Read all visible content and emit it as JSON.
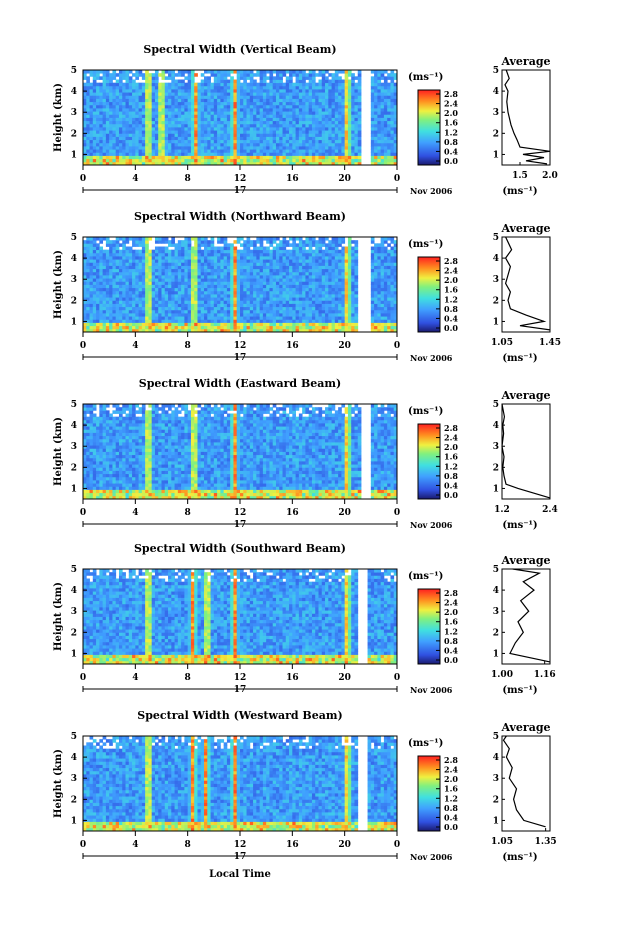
{
  "figure": {
    "xlabel": "Local Time",
    "date_label": "Nov 2006",
    "day_label": "17",
    "unit_label": "(ms⁻¹)",
    "avg_title": "Average",
    "ylabel": "Height (km)"
  },
  "chart_data": [
    {
      "type": "heatmap",
      "title": "Spectral Width (Vertical Beam)",
      "xticks": [
        "0",
        "4",
        "8",
        "12",
        "16",
        "20",
        "0"
      ],
      "xlim": [
        0,
        24
      ],
      "yticks": [
        "1",
        "2",
        "3",
        "4",
        "5"
      ],
      "ylim": [
        0.5,
        5
      ],
      "colorbar_ticks": [
        "2.8",
        "2.4",
        "2.0",
        "1.6",
        "1.2",
        "0.8",
        "0.4",
        "0.0"
      ],
      "colorbar_range": [
        0,
        2.8
      ],
      "hot_columns": [
        5,
        6,
        8.6,
        11.6,
        20.2
      ],
      "gaps": [
        [
          21.2,
          22
        ]
      ],
      "average": {
        "xticks": [
          "1.5",
          "2.0"
        ],
        "xlim": [
          1.2,
          2.0
        ],
        "xlabel": "(ms⁻¹)",
        "points": [
          [
            1.95,
            0.55
          ],
          [
            1.6,
            0.7
          ],
          [
            1.9,
            0.85
          ],
          [
            1.55,
            1.0
          ],
          [
            2.0,
            1.15
          ],
          [
            1.5,
            1.35
          ],
          [
            1.45,
            1.7
          ],
          [
            1.4,
            2.0
          ],
          [
            1.35,
            2.4
          ],
          [
            1.3,
            3.0
          ],
          [
            1.28,
            3.5
          ],
          [
            1.3,
            4.0
          ],
          [
            1.25,
            4.3
          ],
          [
            1.32,
            4.6
          ],
          [
            1.27,
            5.0
          ]
        ]
      }
    },
    {
      "type": "heatmap",
      "title": "Spectral Width (Northward Beam)",
      "xticks": [
        "0",
        "4",
        "8",
        "12",
        "16",
        "20",
        "0"
      ],
      "xlim": [
        0,
        24
      ],
      "yticks": [
        "1",
        "2",
        "3",
        "4",
        "5"
      ],
      "ylim": [
        0.5,
        5
      ],
      "colorbar_ticks": [
        "2.8",
        "2.4",
        "2.0",
        "1.6",
        "1.2",
        "0.8",
        "0.4",
        "0.0"
      ],
      "colorbar_range": [
        0,
        2.8
      ],
      "hot_columns": [
        5,
        8.5,
        11.6,
        20.2
      ],
      "gaps": [
        [
          21.1,
          22
        ]
      ],
      "average": {
        "xticks": [
          "1.05",
          "1.45"
        ],
        "xlim": [
          1.05,
          1.45
        ],
        "xlabel": "(ms⁻¹)",
        "points": [
          [
            1.45,
            0.6
          ],
          [
            1.2,
            0.8
          ],
          [
            1.4,
            1.0
          ],
          [
            1.25,
            1.3
          ],
          [
            1.12,
            1.6
          ],
          [
            1.1,
            2.0
          ],
          [
            1.12,
            2.4
          ],
          [
            1.08,
            2.8
          ],
          [
            1.1,
            3.2
          ],
          [
            1.12,
            3.6
          ],
          [
            1.08,
            4.0
          ],
          [
            1.13,
            4.4
          ],
          [
            1.08,
            5.0
          ]
        ]
      }
    },
    {
      "type": "heatmap",
      "title": "Spectral Width (Eastward Beam)",
      "xticks": [
        "0",
        "4",
        "8",
        "12",
        "16",
        "20",
        "0"
      ],
      "xlim": [
        0,
        24
      ],
      "yticks": [
        "1",
        "2",
        "3",
        "4",
        "5"
      ],
      "ylim": [
        0.5,
        5
      ],
      "colorbar_ticks": [
        "2.8",
        "2.4",
        "2.0",
        "1.6",
        "1.2",
        "0.8",
        "0.4",
        "0.0"
      ],
      "colorbar_range": [
        0,
        2.8
      ],
      "hot_columns": [
        5,
        8.5,
        11.6,
        20.2
      ],
      "gaps": [
        [
          21.2,
          22
        ]
      ],
      "average": {
        "xticks": [
          "1.2",
          "2.4"
        ],
        "xlim": [
          1.2,
          2.4
        ],
        "xlabel": "(ms⁻¹)",
        "points": [
          [
            2.4,
            0.55
          ],
          [
            1.6,
            1.0
          ],
          [
            1.3,
            1.2
          ],
          [
            1.25,
            1.6
          ],
          [
            1.22,
            2.0
          ],
          [
            1.25,
            2.5
          ],
          [
            1.2,
            3.0
          ],
          [
            1.24,
            3.6
          ],
          [
            1.22,
            4.0
          ],
          [
            1.26,
            4.4
          ],
          [
            1.2,
            5.0
          ]
        ]
      }
    },
    {
      "type": "heatmap",
      "title": "Spectral Width (Southward Beam)",
      "xticks": [
        "0",
        "4",
        "8",
        "12",
        "16",
        "20",
        "0"
      ],
      "xlim": [
        0,
        24
      ],
      "yticks": [
        "1",
        "2",
        "3",
        "4",
        "5"
      ],
      "ylim": [
        0.5,
        5
      ],
      "colorbar_ticks": [
        "2.8",
        "2.4",
        "2.0",
        "1.6",
        "1.2",
        "0.8",
        "0.4",
        "0.0"
      ],
      "colorbar_range": [
        0,
        2.8
      ],
      "hot_columns": [
        5,
        8.4,
        9.5,
        11.6,
        20.2
      ],
      "gaps": [
        [
          21.1,
          21.8
        ]
      ],
      "average": {
        "xticks": [
          "1.00",
          "1.16"
        ],
        "xlim": [
          1.0,
          1.18
        ],
        "xlabel": "(ms⁻¹)",
        "points": [
          [
            1.18,
            0.6
          ],
          [
            1.03,
            1.0
          ],
          [
            1.05,
            1.5
          ],
          [
            1.08,
            2.0
          ],
          [
            1.06,
            2.5
          ],
          [
            1.1,
            3.0
          ],
          [
            1.07,
            3.5
          ],
          [
            1.12,
            4.0
          ],
          [
            1.08,
            4.4
          ],
          [
            1.14,
            4.8
          ],
          [
            1.04,
            5.0
          ]
        ]
      }
    },
    {
      "type": "heatmap",
      "title": "Spectral Width (Westward Beam)",
      "xticks": [
        "0",
        "4",
        "8",
        "12",
        "16",
        "20",
        "0"
      ],
      "xlim": [
        0,
        24
      ],
      "yticks": [
        "1",
        "2",
        "3",
        "4",
        "5"
      ],
      "ylim": [
        0.5,
        5
      ],
      "colorbar_ticks": [
        "2.8",
        "2.4",
        "2.0",
        "1.6",
        "1.2",
        "0.8",
        "0.4",
        "0.0"
      ],
      "colorbar_range": [
        0,
        2.8
      ],
      "hot_columns": [
        5,
        8.4,
        9.4,
        11.6,
        20.2
      ],
      "gaps": [
        [
          21.1,
          21.8
        ]
      ],
      "average": {
        "xticks": [
          "1.05",
          "1.35"
        ],
        "xlim": [
          1.05,
          1.38
        ],
        "xlabel": "(ms⁻¹)",
        "points": [
          [
            1.35,
            0.7
          ],
          [
            1.2,
            1.0
          ],
          [
            1.15,
            1.5
          ],
          [
            1.13,
            2.0
          ],
          [
            1.15,
            2.5
          ],
          [
            1.1,
            3.0
          ],
          [
            1.12,
            3.5
          ],
          [
            1.08,
            4.0
          ],
          [
            1.1,
            4.4
          ],
          [
            1.06,
            4.8
          ],
          [
            1.08,
            5.0
          ]
        ]
      }
    }
  ]
}
